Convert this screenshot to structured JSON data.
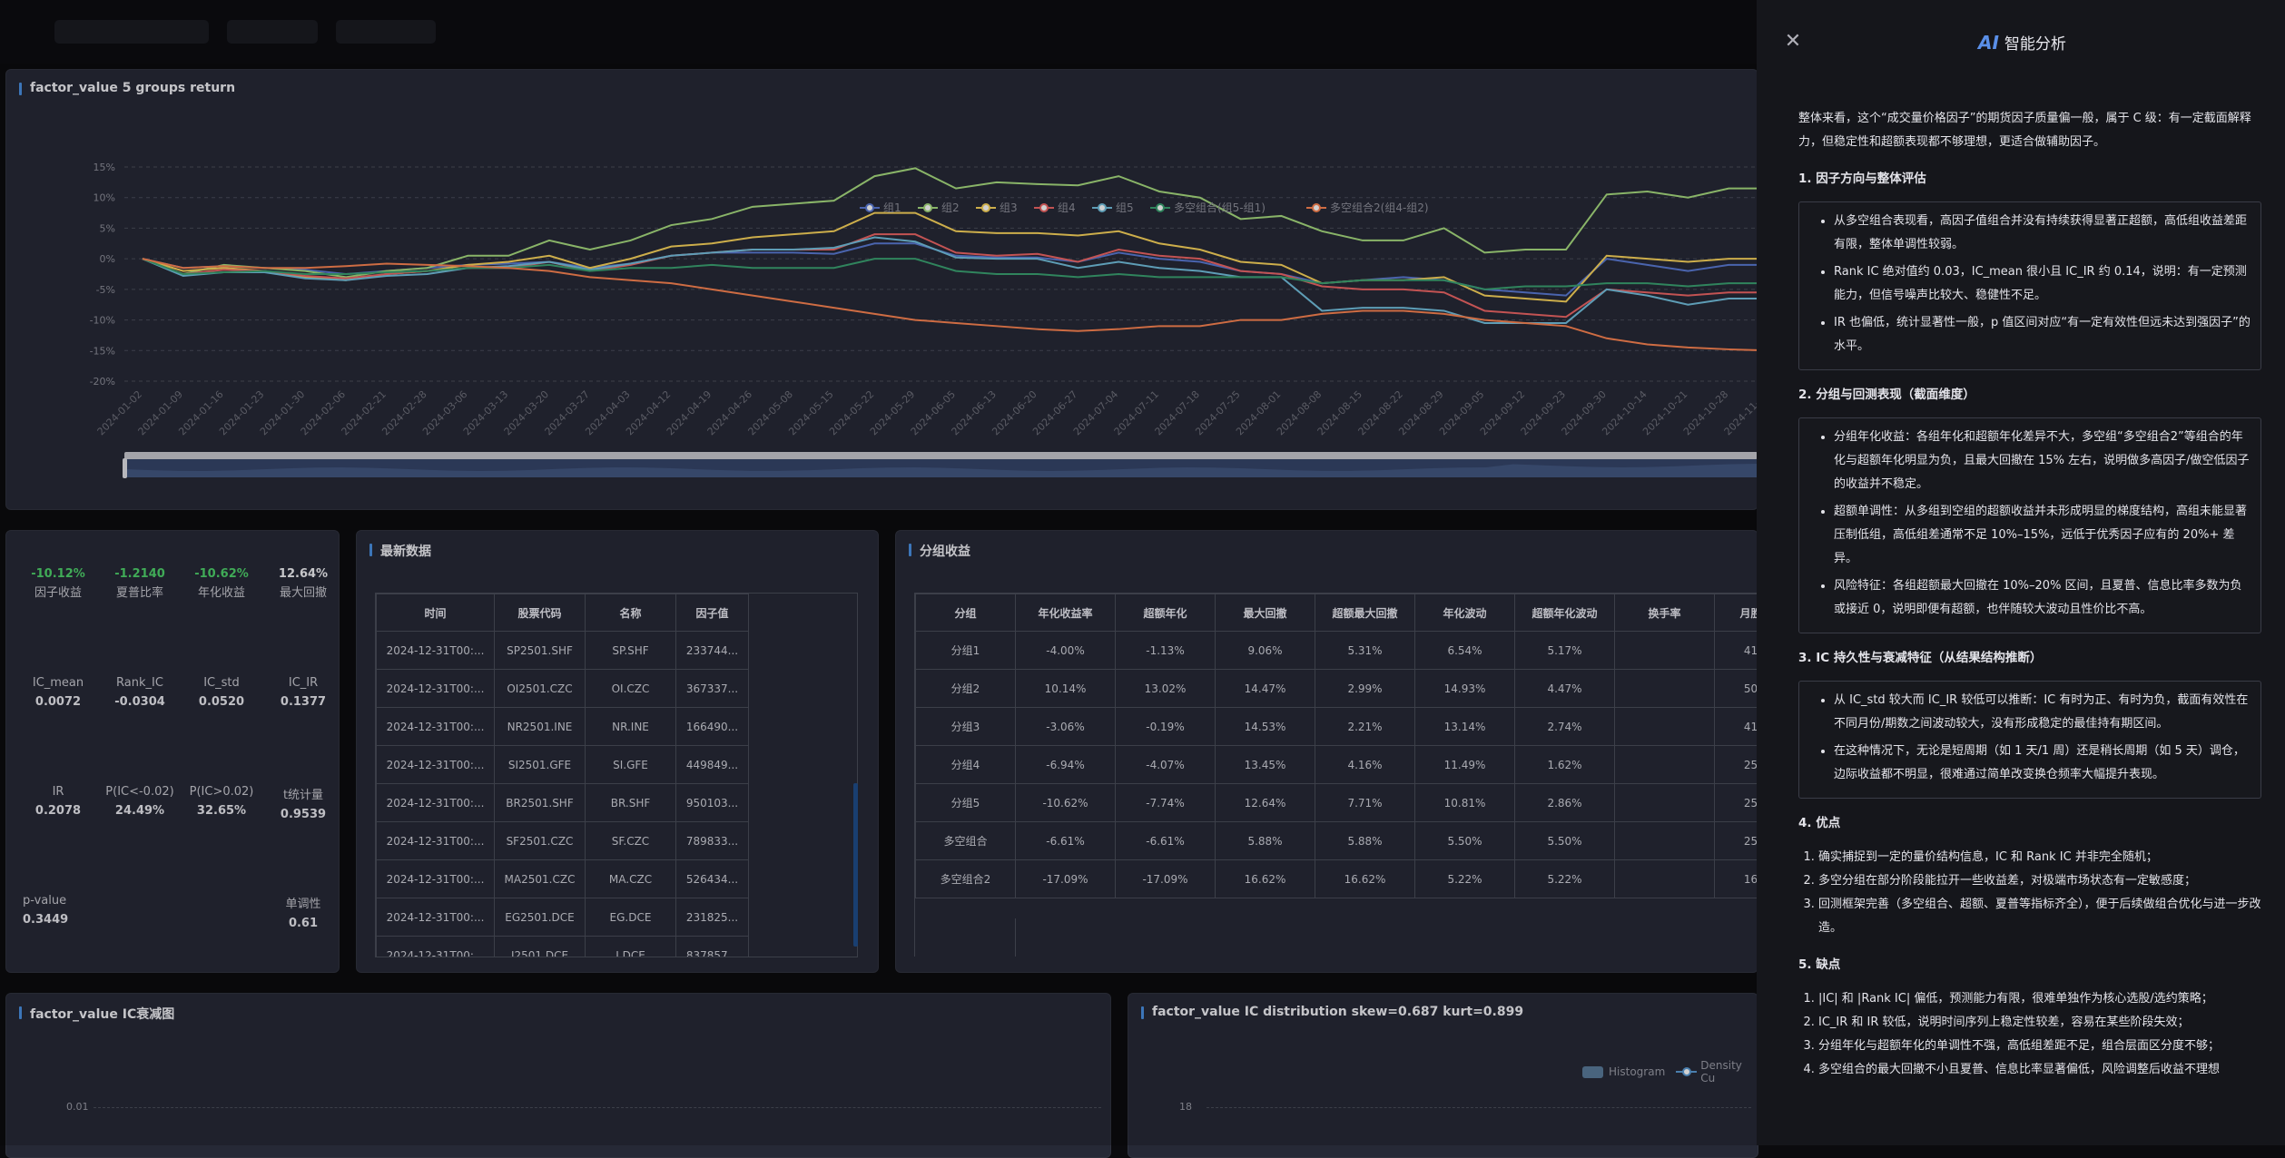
{
  "colors": {
    "g1": "#5b7bd5",
    "g2": "#a8dc7f",
    "g3": "#fad55c",
    "g4": "#ee6666",
    "g5": "#73c0de",
    "ls1": "#3ba272",
    "ls2": "#fc8452",
    "accent": "#4a90e2",
    "pos": "#4fd16b",
    "neg": "#ee6666"
  },
  "returns_chart": {
    "title": "factor_value 5 groups return",
    "chart_data": {
      "type": "line",
      "legend_position": "top-center",
      "grid": true,
      "ylim": [
        -20,
        15
      ],
      "yticks": [
        "15%",
        "10%",
        "5%",
        "0%",
        "-5%",
        "-10%",
        "-15%",
        "-20%"
      ],
      "x_ticks": [
        "2024-01-02",
        "2024-01-09",
        "2024-01-16",
        "2024-01-23",
        "2024-01-30",
        "2024-02-06",
        "2024-02-21",
        "2024-02-28",
        "2024-03-06",
        "2024-03-13",
        "2024-03-20",
        "2024-03-27",
        "2024-04-03",
        "2024-04-12",
        "2024-04-19",
        "2024-04-26",
        "2024-05-08",
        "2024-05-15",
        "2024-05-22",
        "2024-05-29",
        "2024-06-05",
        "2024-06-13",
        "2024-06-20",
        "2024-06-27",
        "2024-07-04",
        "2024-07-11",
        "2024-07-18",
        "2024-07-25",
        "2024-08-01",
        "2024-08-08",
        "2024-08-15",
        "2024-08-22",
        "2024-08-29",
        "2024-09-05",
        "2024-09-12",
        "2024-09-23",
        "2024-09-30",
        "2024-10-14",
        "2024-10-21",
        "2024-10-28",
        "2024-11-04"
      ],
      "series": [
        {
          "name": "组1",
          "color": "#5b7bd5",
          "values": [
            0,
            -1.5,
            -1.2,
            -1.5,
            -1.8,
            -2.5,
            -2,
            -1.5,
            -1,
            -0.8,
            -0.5,
            -1.5,
            -0.8,
            0.5,
            1,
            1,
            1,
            0.8,
            2.5,
            2.5,
            0.5,
            0.2,
            0.2,
            -0.5,
            1,
            0,
            -0.5,
            -2,
            -2.5,
            -4,
            -3.5,
            -3,
            -3.5,
            -5,
            -5.5,
            -6,
            0,
            -1,
            -2,
            -1,
            -1
          ]
        },
        {
          "name": "组2",
          "color": "#a8dc7f",
          "values": [
            0,
            -2.5,
            -1,
            -1.5,
            -2,
            -3,
            -2,
            -1.5,
            0.5,
            0.5,
            3,
            1.5,
            3,
            5.5,
            6.5,
            8.5,
            9,
            9.5,
            13.5,
            14.8,
            11.5,
            12.5,
            12.2,
            12,
            13.5,
            11,
            10,
            6.5,
            7,
            4.5,
            3,
            3,
            5,
            1,
            1.5,
            1.5,
            10.5,
            11,
            10,
            11.5,
            11.5
          ]
        },
        {
          "name": "组3",
          "color": "#fad55c",
          "values": [
            0,
            -2,
            -1.5,
            -2,
            -3,
            -3.5,
            -2.5,
            -2,
            -1,
            -0.5,
            0.5,
            -1.5,
            0,
            2,
            2.5,
            3.5,
            4,
            4.5,
            7.5,
            7.5,
            4.5,
            4.2,
            4.2,
            3.8,
            4.5,
            2.5,
            1.5,
            -0.5,
            -1,
            -4,
            -3.5,
            -3.5,
            -3,
            -6,
            -6.5,
            -7,
            0.5,
            0,
            -0.5,
            0,
            0
          ]
        },
        {
          "name": "组4",
          "color": "#ee6666",
          "values": [
            0,
            -2.5,
            -1.8,
            -2,
            -2.8,
            -3.2,
            -2.5,
            -2,
            -1.5,
            -1.5,
            -0.5,
            -2,
            -1,
            0.5,
            1,
            1.5,
            1.5,
            1.5,
            4,
            4,
            1,
            0.5,
            0.8,
            -0.5,
            1.5,
            0.5,
            0,
            -2,
            -2.5,
            -4.5,
            -5,
            -5,
            -5.5,
            -8.5,
            -9,
            -9.5,
            -5,
            -5.5,
            -6,
            -5.5,
            -5.5
          ]
        },
        {
          "name": "组5",
          "color": "#73c0de",
          "values": [
            0,
            -2.8,
            -2.2,
            -2.2,
            -3.2,
            -3.5,
            -2.8,
            -2.5,
            -1.5,
            -1.2,
            -0.5,
            -1.8,
            -0.8,
            0.5,
            1,
            1.5,
            1.5,
            1.8,
            3.5,
            2.8,
            0.2,
            0,
            0,
            -1.5,
            -0.5,
            -1.5,
            -2,
            -3,
            -3,
            -8.5,
            -8,
            -8,
            -8.5,
            -10.5,
            -10.5,
            -10.5,
            -5,
            -6,
            -7.5,
            -6.5,
            -6.5
          ]
        },
        {
          "name": "多空组合(组5-组1)",
          "color": "#3ba272",
          "values": [
            0,
            -2.5,
            -2.2,
            -2,
            -2.5,
            -2.5,
            -2.2,
            -2,
            -1.5,
            -1.5,
            -1,
            -2,
            -1.5,
            -1.5,
            -1,
            -1.5,
            -1.5,
            -1.5,
            0,
            0,
            -2,
            -2.5,
            -2.5,
            -3,
            -2.5,
            -3,
            -3,
            -3,
            -3,
            -4,
            -3.5,
            -3.5,
            -3.5,
            -5,
            -4.5,
            -4.5,
            -4,
            -4,
            -4.5,
            -4,
            -4
          ]
        },
        {
          "name": "多空组合2(组4-组2)",
          "color": "#fc8452",
          "values": [
            0,
            -1.5,
            -1.2,
            -1.5,
            -1.5,
            -1.2,
            -0.8,
            -1,
            -1.2,
            -1.5,
            -2,
            -3,
            -3.5,
            -4,
            -5,
            -6,
            -7,
            -8,
            -9,
            -10,
            -10.5,
            -11,
            -11.5,
            -11.8,
            -11.5,
            -11,
            -11,
            -10,
            -10,
            -9,
            -8.5,
            -8.5,
            -9,
            -10,
            -10.5,
            -11,
            -13,
            -14,
            -14.5,
            -14.8,
            -15
          ]
        }
      ]
    }
  },
  "metrics": {
    "row1": [
      {
        "value": "-10.12%",
        "label": "因子收益",
        "tone": "pos"
      },
      {
        "value": "-1.2140",
        "label": "夏普比率",
        "tone": "pos"
      },
      {
        "value": "-10.62%",
        "label": "年化收益",
        "tone": "pos"
      },
      {
        "value": "12.64%",
        "label": "最大回撤",
        "tone": "neutral"
      }
    ],
    "row2": [
      {
        "label": "IC_mean",
        "value": "0.0072"
      },
      {
        "label": "Rank_IC",
        "value": "-0.0304"
      },
      {
        "label": "IC_std",
        "value": "0.0520"
      },
      {
        "label": "IC_IR",
        "value": "0.1377"
      }
    ],
    "row3": [
      {
        "label": "IR",
        "value": "0.2078"
      },
      {
        "label": "P(IC<-0.02)",
        "value": "24.49%"
      },
      {
        "label": "P(IC>0.02)",
        "value": "32.65%"
      },
      {
        "label": "t统计量",
        "value": "0.9539"
      }
    ],
    "row4": [
      {
        "label": "p-value",
        "value": "0.3449"
      },
      {
        "label": "单调性",
        "value": "0.61"
      }
    ]
  },
  "latest": {
    "title": "最新数据",
    "headers": [
      "时间",
      "股票代码",
      "名称",
      "因子值"
    ],
    "rows": [
      [
        "2024-12-31T00:...",
        "SP2501.SHF",
        "SP.SHF",
        "233744..."
      ],
      [
        "2024-12-31T00:...",
        "OI2501.CZC",
        "OI.CZC",
        "367337..."
      ],
      [
        "2024-12-31T00:...",
        "NR2501.INE",
        "NR.INE",
        "166490..."
      ],
      [
        "2024-12-31T00:...",
        "SI2501.GFE",
        "SI.GFE",
        "449849..."
      ],
      [
        "2024-12-31T00:...",
        "BR2501.SHF",
        "BR.SHF",
        "950103..."
      ],
      [
        "2024-12-31T00:...",
        "SF2501.CZC",
        "SF.CZC",
        "789833..."
      ],
      [
        "2024-12-31T00:...",
        "MA2501.CZC",
        "MA.CZC",
        "526434..."
      ],
      [
        "2024-12-31T00:...",
        "EG2501.DCE",
        "EG.DCE",
        "231825..."
      ],
      [
        "2024-12-31T00:...",
        "I2501.DCE",
        "I.DCE",
        "837857..."
      ]
    ]
  },
  "group_returns": {
    "title": "分组收益",
    "headers": [
      "分组",
      "年化收益率",
      "超额年化",
      "最大回撤",
      "超额最大回撤",
      "年化波动",
      "超额年化波动",
      "换手率",
      "月胜"
    ],
    "rows": [
      [
        "分组1",
        "-4.00%",
        "-1.13%",
        "9.06%",
        "5.31%",
        "6.54%",
        "5.17%",
        "",
        "41"
      ],
      [
        "分组2",
        "10.14%",
        "13.02%",
        "14.47%",
        "2.99%",
        "14.93%",
        "4.47%",
        "",
        "50"
      ],
      [
        "分组3",
        "-3.06%",
        "-0.19%",
        "14.53%",
        "2.21%",
        "13.14%",
        "2.74%",
        "",
        "41"
      ],
      [
        "分组4",
        "-6.94%",
        "-4.07%",
        "13.45%",
        "4.16%",
        "11.49%",
        "1.62%",
        "",
        "25"
      ],
      [
        "分组5",
        "-10.62%",
        "-7.74%",
        "12.64%",
        "7.71%",
        "10.81%",
        "2.86%",
        "",
        "25"
      ],
      [
        "多空组合",
        "-6.61%",
        "-6.61%",
        "5.88%",
        "5.88%",
        "5.50%",
        "5.50%",
        "",
        "25"
      ],
      [
        "多空组合2",
        "-17.09%",
        "-17.09%",
        "16.62%",
        "16.62%",
        "5.22%",
        "5.22%",
        "",
        "16"
      ]
    ]
  },
  "ic_decay": {
    "title": "factor_value IC衰减图",
    "first_tick": "0.01"
  },
  "ic_dist": {
    "title": "factor_value IC distribution skew=0.687 kurt=0.899",
    "legend": [
      "Histogram",
      "Density Cu"
    ],
    "first_tick": "18"
  },
  "drawer": {
    "title_ai": "AI",
    "title": "智能分析",
    "intro": "整体来看，这个“成交量价格因子”的期货因子质量偏一般，属于 C 级：有一定截面解释力，但稳定性和超额表现都不够理想，更适合做辅助因子。",
    "s1": {
      "heading": "1. 因子方向与整体评估",
      "items": [
        "从多空组合表现看，高因子值组合并没有持续获得显著正超额，高低组收益差距有限，整体单调性较弱。",
        "Rank IC 绝对值约 0.03，IC_mean 很小且 IC_IR 约 0.14，说明：有一定预测能力，但信号噪声比较大、稳健性不足。",
        "IR 也偏低，统计显著性一般，p 值区间对应“有一定有效性但远未达到强因子”的水平。"
      ]
    },
    "s2": {
      "heading": "2. 分组与回测表现（截面维度）",
      "items": [
        "分组年化收益：各组年化和超额年化差异不大，多空组“多空组合2”等组合的年化与超额年化明显为负，且最大回撤在 15% 左右，说明做多高因子/做空低因子的收益并不稳定。",
        "超额单调性：从多组到空组的超额收益并未形成明显的梯度结构，高组未能显著压制低组，高低组差通常不足 10%–15%，远低于优秀因子应有的 20%+ 差异。",
        "风险特征：各组超额最大回撤在 10%–20% 区间，且夏普、信息比率多数为负或接近 0，说明即便有超额，也伴随较大波动且性价比不高。"
      ]
    },
    "s3": {
      "heading": "3. IC 持久性与衰减特征（从结果结构推断）",
      "items": [
        "从 IC_std 较大而 IC_IR 较低可以推断：IC 有时为正、有时为负，截面有效性在不同月份/期数之间波动较大，没有形成稳定的最佳持有期区间。",
        "在这种情况下，无论是短周期（如 1 天/1 周）还是稍长周期（如 5 天）调仓，边际收益都不明显，很难通过简单改变换仓频率大幅提升表现。"
      ]
    },
    "s4": {
      "heading": "4. 优点",
      "items": [
        "确实捕捉到一定的量价结构信息，IC 和 Rank IC 并非完全随机；",
        "多空分组在部分阶段能拉开一些收益差，对极端市场状态有一定敏感度；",
        "回测框架完善（多空组合、超额、夏普等指标齐全），便于后续做组合优化与进一步改造。"
      ]
    },
    "s5": {
      "heading": "5. 缺点",
      "items": [
        "|IC| 和 |Rank IC| 偏低，预测能力有限，很难单独作为核心选股/选约策略；",
        "IC_IR 和 IR 较低，说明时间序列上稳定性较差，容易在某些阶段失效；",
        "分组年化与超额年化的单调性不强，高低组差距不足，组合层面区分度不够；",
        "多空组合的最大回撤不小且夏普、信息比率显著偏低，风险调整后收益不理想"
      ]
    }
  }
}
